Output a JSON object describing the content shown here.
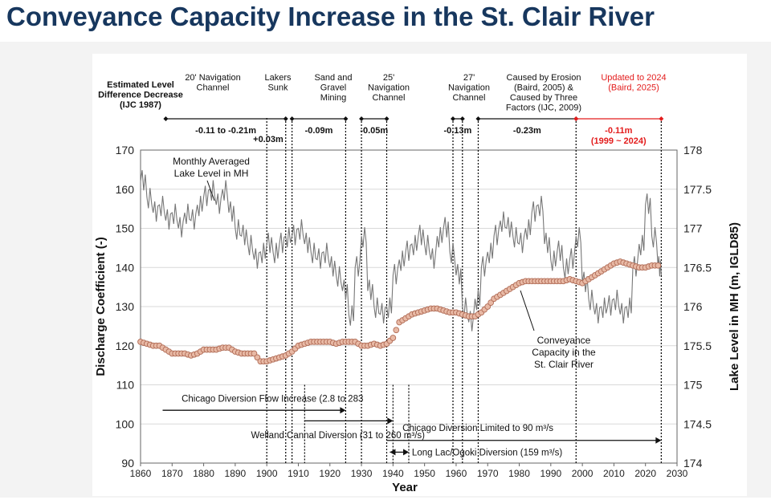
{
  "slide": {
    "title": "Conveyance Capacity Increase in the St. Clair River"
  },
  "chart_data": {
    "type": "line",
    "xlabel": "Year",
    "ylabel_left": "Discharge Coefficient (-)",
    "ylabel_right": "Lake Level in MH (m, IGLD85)",
    "xlim": [
      1860,
      2030
    ],
    "ylim_left": [
      90,
      170
    ],
    "ylim_right": [
      174,
      178
    ],
    "xticks": [
      1860,
      1870,
      1880,
      1890,
      1900,
      1910,
      1920,
      1930,
      1940,
      1950,
      1960,
      1970,
      1980,
      1990,
      2000,
      2010,
      2020,
      2030
    ],
    "yticks_left": [
      90,
      100,
      110,
      120,
      130,
      140,
      150,
      160,
      170
    ],
    "yticks_right": [
      "174",
      "174.5",
      "175",
      "175.5",
      "176",
      "176.5",
      "177",
      "177.5",
      "178"
    ],
    "yticks_right_values": [
      174,
      174.5,
      175,
      175.5,
      176,
      176.5,
      177,
      177.5,
      178
    ],
    "grid": "horizontal",
    "series": [
      {
        "name": "Monthly Averaged Lake Level in MH",
        "axis": "right",
        "color": "#777777",
        "x": [
          1860,
          1862,
          1864,
          1866,
          1868,
          1870,
          1872,
          1874,
          1876,
          1878,
          1880,
          1882,
          1884,
          1886,
          1888,
          1890,
          1892,
          1894,
          1896,
          1898,
          1900,
          1902,
          1904,
          1906,
          1908,
          1910,
          1912,
          1914,
          1916,
          1918,
          1920,
          1922,
          1924,
          1926,
          1928,
          1930,
          1932,
          1934,
          1936,
          1938,
          1940,
          1942,
          1944,
          1946,
          1948,
          1950,
          1952,
          1954,
          1956,
          1958,
          1960,
          1962,
          1964,
          1966,
          1968,
          1970,
          1972,
          1974,
          1976,
          1978,
          1980,
          1982,
          1984,
          1986,
          1988,
          1990,
          1992,
          1994,
          1996,
          1998,
          2000,
          2002,
          2004,
          2006,
          2008,
          2010,
          2012,
          2014,
          2016,
          2018,
          2020,
          2022,
          2024,
          2025
        ],
        "y": [
          177.6,
          177.4,
          177.2,
          177.3,
          177.1,
          177.2,
          177.0,
          177.2,
          177.1,
          177.3,
          177.4,
          177.5,
          177.3,
          177.5,
          177.2,
          177.0,
          176.9,
          176.8,
          176.6,
          176.7,
          176.8,
          176.7,
          176.8,
          176.9,
          176.9,
          177.0,
          176.8,
          176.7,
          176.6,
          176.7,
          176.5,
          176.4,
          176.2,
          175.9,
          176.5,
          176.9,
          176.2,
          176.0,
          175.9,
          176.0,
          176.4,
          176.6,
          176.7,
          176.8,
          176.9,
          176.8,
          176.6,
          176.9,
          177.0,
          176.7,
          176.4,
          176.0,
          175.8,
          176.1,
          176.5,
          176.7,
          176.9,
          177.1,
          177.0,
          176.9,
          176.8,
          177.0,
          177.2,
          177.3,
          176.8,
          176.6,
          176.7,
          176.5,
          176.6,
          176.9,
          176.3,
          176.1,
          175.9,
          176.0,
          176.0,
          176.1,
          175.9,
          176.0,
          176.5,
          176.8,
          177.3,
          176.9,
          176.5,
          176.4
        ]
      },
      {
        "name": "Conveyance Capacity in the St. Clair River",
        "axis": "left",
        "color": "#e8b9a5",
        "x": [
          1860,
          1862,
          1864,
          1866,
          1868,
          1870,
          1872,
          1874,
          1876,
          1878,
          1880,
          1882,
          1884,
          1886,
          1888,
          1890,
          1892,
          1894,
          1896,
          1898,
          1900,
          1902,
          1904,
          1906,
          1908,
          1910,
          1912,
          1914,
          1916,
          1918,
          1920,
          1922,
          1924,
          1926,
          1928,
          1930,
          1932,
          1934,
          1936,
          1938,
          1940,
          1942,
          1944,
          1946,
          1948,
          1950,
          1952,
          1954,
          1956,
          1958,
          1960,
          1962,
          1964,
          1966,
          1968,
          1970,
          1972,
          1974,
          1976,
          1978,
          1980,
          1982,
          1984,
          1986,
          1988,
          1990,
          1992,
          1994,
          1996,
          1998,
          2000,
          2002,
          2004,
          2006,
          2008,
          2010,
          2012,
          2014,
          2016,
          2018,
          2020,
          2022,
          2024
        ],
        "y": [
          121,
          120.5,
          120,
          120,
          119,
          118,
          118,
          118,
          117.5,
          118,
          119,
          119,
          119,
          119.5,
          119.5,
          118.5,
          118,
          118,
          118,
          116,
          116,
          116.5,
          117,
          117.5,
          118.5,
          120,
          120.5,
          121,
          121,
          121,
          121,
          120.5,
          121,
          121,
          121,
          120,
          120,
          120.5,
          120,
          120.5,
          122,
          126,
          127,
          128,
          128.5,
          129,
          129.5,
          129.5,
          129,
          128.5,
          128.5,
          128,
          127.5,
          127.5,
          128.5,
          130,
          132,
          133,
          134,
          135,
          136,
          136.5,
          136.5,
          136.5,
          136.5,
          136.5,
          136.5,
          136.5,
          137,
          136.5,
          136,
          137,
          138,
          139,
          140,
          141,
          141.5,
          141,
          140.5,
          140,
          140,
          140.5,
          140.5
        ]
      }
    ],
    "events": [
      {
        "id": "ijc",
        "label": "Estimated Level Difference Decrease (IJC 1987)",
        "bold": true
      },
      {
        "id": "nav20",
        "label": "20' Navigation Channel",
        "year": 1906
      },
      {
        "id": "lakers",
        "label": "Lakers Sunk",
        "year": 1908
      },
      {
        "id": "mining",
        "label": "Sand and Gravel Mining",
        "year": 1925
      },
      {
        "id": "nav25",
        "label": "25' Navigation Channel",
        "year": 1930
      },
      {
        "id": "nav27",
        "label": "27' Navigation Channel",
        "year": 1962
      },
      {
        "id": "erosion",
        "label": "Caused by Erosion (Baird, 2005) & Caused by Three Factors (IJC, 2009)"
      },
      {
        "id": "update",
        "label": "Updated to 2024 (Baird, 2025)",
        "color": "#e31c1c"
      }
    ],
    "vertical_lines": [
      1900,
      1906,
      1908,
      1925,
      1930,
      1938,
      1959,
      1962,
      1967,
      1998,
      2025,
      1912,
      1940,
      1945
    ],
    "level_changes": [
      {
        "label": "-0.11 to -0.21m",
        "from": 1868,
        "to": 1906
      },
      {
        "label": "+0.03m",
        "from": 1900,
        "to": 1906
      },
      {
        "label": "-0.09m",
        "from": 1908,
        "to": 1925
      },
      {
        "label": "-0.05m",
        "from": 1930,
        "to": 1938
      },
      {
        "label": "-0.13m",
        "from": 1959,
        "to": 1962
      },
      {
        "label": "-0.23m",
        "from": 1967,
        "to": 1998
      },
      {
        "label": "-0.11m",
        "sublabel": "(1999 ~ 2024)",
        "from": 1998,
        "to": 2025,
        "color": "#e31c1c"
      }
    ],
    "diversions": [
      {
        "label": "Chicago Diversion Flow Increase (2.8 to 283",
        "from": 1867,
        "to": 1925,
        "y": 103.5,
        "label_year": 1873,
        "label_y": 106.5
      },
      {
        "label": "Welland Cannal Diversion (31 to 260 m³/s)",
        "from": 1912,
        "to": 1940,
        "y": 100.8,
        "label_year": 1895,
        "label_y": 97.2
      },
      {
        "label": "Chicago Diversion Limited to 90 m³/s",
        "from": 1938,
        "to": 2025,
        "y": 95.8,
        "label_year": 1943,
        "label_y": 99
      },
      {
        "label": "Long Lac/Ogoki Diversion (159 m³/s)",
        "from": 1939,
        "to": 1945,
        "y": 92.8,
        "label_year": 1946,
        "label_y": 92.8
      }
    ],
    "annotations": [
      {
        "id": "lake-level-label",
        "label": "Monthly Averaged Lake Level in MH",
        "year": 1881,
        "value": 155
      },
      {
        "id": "conveyance-label",
        "label": "Conveyance Capacity in the St. Clair River",
        "year": 1978,
        "value": 127
      }
    ]
  }
}
